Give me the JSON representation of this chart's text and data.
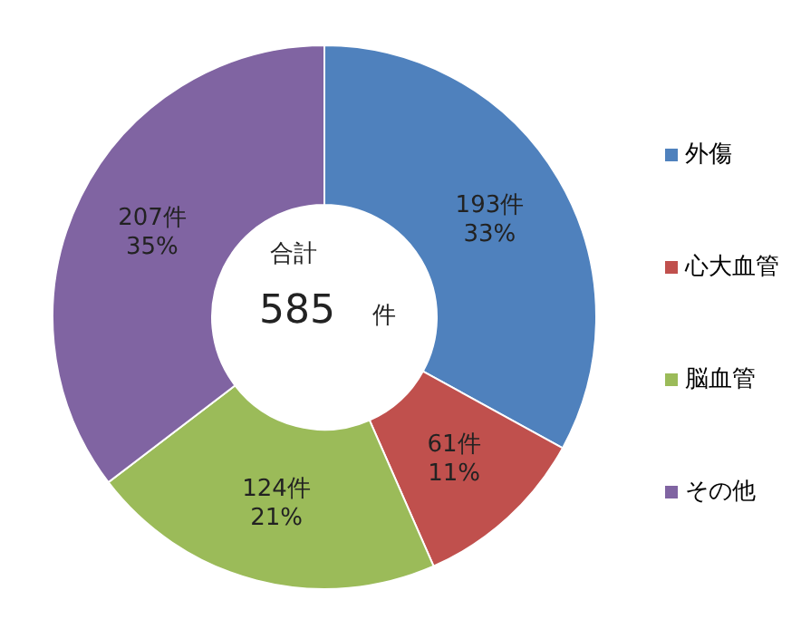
{
  "chart_data": {
    "type": "donut",
    "categories": [
      "外傷",
      "心大血管",
      "脳血管",
      "その他"
    ],
    "values": [
      193,
      61,
      124,
      207
    ],
    "colors": [
      "#4f81bd",
      "#c0504d",
      "#9bbb59",
      "#8064a2"
    ],
    "value_labels": [
      "193件\n33%",
      "61件\n11%",
      "124件\n21%",
      "207件\n35%"
    ],
    "annotations": [
      "合計",
      "585",
      "件"
    ],
    "legend": "right"
  }
}
